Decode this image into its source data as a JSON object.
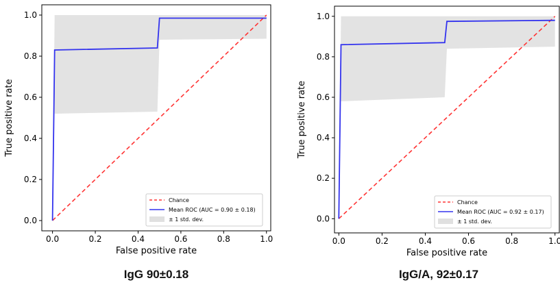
{
  "chart_data": [
    {
      "type": "line",
      "title": "",
      "xlabel": "False positive rate",
      "ylabel": "True positive rate",
      "xlim": [
        -0.05,
        1.02
      ],
      "ylim": [
        -0.05,
        1.05
      ],
      "xticks": [
        0.0,
        0.2,
        0.4,
        0.6,
        0.8,
        1.0
      ],
      "xtick_labels": [
        "0.0",
        "0.2",
        "0.4",
        "0.6",
        "0.8",
        "1.0"
      ],
      "yticks": [
        0.0,
        0.2,
        0.4,
        0.6,
        0.8,
        1.0
      ],
      "ytick_labels": [
        "0.0",
        "0.2",
        "0.4",
        "0.6",
        "0.8",
        "1.0"
      ],
      "grid": false,
      "legend_position": "lower-right",
      "series": [
        {
          "name": "Chance",
          "style": "dashed",
          "color": "#ff3333",
          "x": [
            0,
            1
          ],
          "y": [
            0,
            1
          ]
        },
        {
          "name": "Mean ROC (AUC = 0.90 ± 0.18)",
          "style": "solid",
          "color": "#3333ee",
          "x": [
            0.0,
            0.01,
            0.49,
            0.5,
            1.0
          ],
          "y": [
            0.0,
            0.83,
            0.84,
            0.985,
            0.985
          ]
        },
        {
          "name": "± 1 std. dev.",
          "style": "band",
          "color": "#cccccc",
          "x": [
            0.0,
            0.01,
            0.49,
            0.5,
            1.0
          ],
          "upper": [
            0.0,
            1.0,
            1.0,
            1.0,
            1.0
          ],
          "lower": [
            0.0,
            0.52,
            0.53,
            0.88,
            0.885
          ]
        }
      ],
      "caption": "IgG 90±0.18"
    },
    {
      "type": "line",
      "title": "",
      "xlabel": "False positive rate",
      "ylabel": "True positive rate",
      "xlim": [
        -0.02,
        1.02
      ],
      "ylim": [
        -0.07,
        1.05
      ],
      "xticks": [
        0.0,
        0.2,
        0.4,
        0.6,
        0.8,
        1.0
      ],
      "xtick_labels": [
        "0.0",
        "0.2",
        "0.4",
        "0.6",
        "0.8",
        "1.0"
      ],
      "yticks": [
        0.0,
        0.2,
        0.4,
        0.6,
        0.8,
        1.0
      ],
      "ytick_labels": [
        "0.0",
        "0.2",
        "0.4",
        "0.6",
        "0.8",
        "1.0"
      ],
      "grid": false,
      "legend_position": "lower-right",
      "series": [
        {
          "name": "Chance",
          "style": "dashed",
          "color": "#ff3333",
          "x": [
            0,
            1
          ],
          "y": [
            0,
            1
          ]
        },
        {
          "name": "Mean ROC (AUC = 0.92 ± 0.17)",
          "style": "solid",
          "color": "#3333ee",
          "x": [
            0.0,
            0.01,
            0.49,
            0.5,
            1.0
          ],
          "y": [
            0.0,
            0.86,
            0.87,
            0.975,
            0.98
          ]
        },
        {
          "name": "± 1 std. dev.",
          "style": "band",
          "color": "#cccccc",
          "x": [
            0.0,
            0.01,
            0.49,
            0.5,
            1.0
          ],
          "upper": [
            0.0,
            1.0,
            1.0,
            1.0,
            1.0
          ],
          "lower": [
            0.0,
            0.58,
            0.6,
            0.84,
            0.85
          ]
        }
      ],
      "caption": "IgG/A, 92±0.17"
    }
  ]
}
